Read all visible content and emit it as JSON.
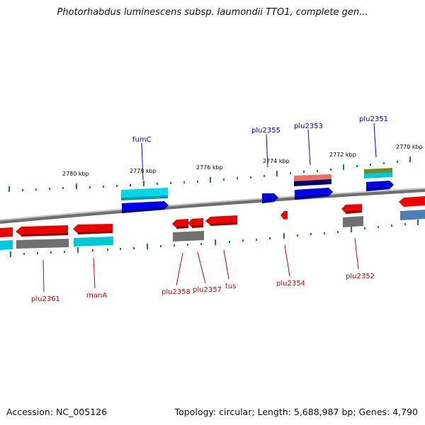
{
  "title": "Photorhabdus luminescens subsp. laumondii TTO1, complete gen...",
  "footer": {
    "accession": "Accession: NC_005126",
    "stats": "Topology: circular; Length: 5,688,987 bp; Genes: 4,790"
  },
  "colors": {
    "backbone": "#8c8c8c",
    "tick": "#1f8a1f",
    "forward_label": "#0000cc",
    "reverse_label": "#cc0000",
    "kbp_label": "#000000"
  },
  "kbp_ticks": [
    "2780 kbp",
    "2778 kbp",
    "2776 kbp",
    "2774 kbp",
    "2772 kbp",
    "2770 kbp"
  ],
  "genes_forward": [
    {
      "name": "fumC",
      "color": "#0000ee",
      "track_color": "#00d8e8"
    },
    {
      "name": "plu2355",
      "color": "#0000ee"
    },
    {
      "name": "plu2353",
      "color": "#0000ee",
      "track_colors": [
        "#f07060",
        "#00006a"
      ]
    },
    {
      "name": "plu2351",
      "color": "#0000ee",
      "track_colors": [
        "#6a8f1f",
        "#00c8d8"
      ]
    }
  ],
  "genes_reverse": [
    {
      "name": "plu2361",
      "color": "#ee0000",
      "track_color": "#707070"
    },
    {
      "name": "manA",
      "color": "#ee0000",
      "track_color": "#00c8d8"
    },
    {
      "name": "plu2358",
      "color": "#ee0000",
      "track_color": "#707070"
    },
    {
      "name": "plu2357",
      "color": "#ee0000"
    },
    {
      "name": "tus",
      "color": "#ee0000"
    },
    {
      "name": "plu2354",
      "color": "#ee0000"
    },
    {
      "name": "plu2352",
      "color": "#ee0000",
      "track_color": "#707070"
    }
  ]
}
